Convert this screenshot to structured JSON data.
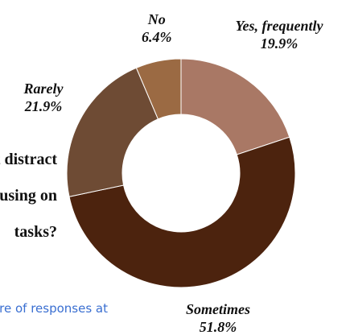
{
  "question": {
    "line1": "What distract",
    "line2": "from focusing on",
    "line3": "tasks?"
  },
  "footnote": "Share of responses at",
  "chart_data": {
    "type": "pie",
    "donut": true,
    "categories": [
      "Yes, frequently",
      "Sometimes",
      "Rarely",
      "No"
    ],
    "values": [
      19.9,
      51.8,
      21.9,
      6.4
    ],
    "value_labels": [
      "19.9%",
      "51.8%",
      "21.9%",
      "6.4%"
    ],
    "colors": [
      "#a97865",
      "#4c230e",
      "#6e4b34",
      "#9b6a43"
    ]
  }
}
